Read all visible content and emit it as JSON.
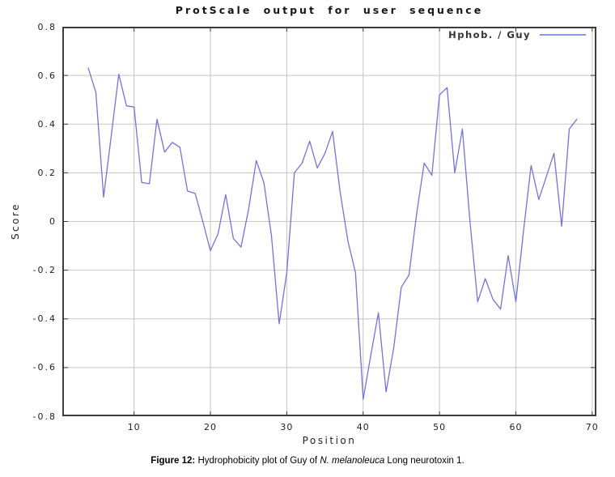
{
  "title": "ProtScale output for user sequence",
  "legend": {
    "label": "Hphob. / Guy"
  },
  "axes": {
    "x_label": "Position",
    "y_label": "Score"
  },
  "caption": {
    "prefix": "Figure 12:",
    "body": " Hydrophobicity plot of Guy of ",
    "species": "N. melanoleuca",
    "suffix": " Long neurotoxin 1."
  },
  "colors": {
    "line": "#7474d6",
    "legend_line": "#9494dd",
    "grid": "#c6c6c6",
    "frame": "#3c3c3c",
    "text": "#1d1d1d"
  },
  "chart_data": {
    "type": "line",
    "title": "ProtScale output for user sequence",
    "xlabel": "Position",
    "ylabel": "Score",
    "legend_position": "top-right",
    "grid": true,
    "xlim": [
      0.6,
      70.55
    ],
    "ylim": [
      -0.8,
      0.8
    ],
    "x_ticks": [
      10,
      20,
      30,
      40,
      50,
      60,
      70
    ],
    "y_tick_values": [
      0.8,
      0.6,
      0.4,
      0.2,
      0,
      -0.2,
      -0.4,
      -0.6,
      -0.8
    ],
    "y_tick_labels": [
      "0.8",
      "0.6",
      "0.4",
      "0.2",
      "0",
      "-0.2",
      "-0.4",
      "-0.6",
      "-0.8"
    ],
    "series": [
      {
        "name": "Hphob. / Guy",
        "positions": [
          4,
          5,
          6,
          7,
          8,
          9,
          10,
          11,
          12,
          13,
          14,
          15,
          16,
          17,
          18,
          19,
          20,
          21,
          22,
          23,
          24,
          25,
          26,
          27,
          28,
          29,
          30,
          31,
          32,
          33,
          34,
          35,
          36,
          37,
          38,
          39,
          40,
          41,
          42,
          43,
          44,
          45,
          46,
          47,
          48,
          49,
          50,
          51,
          52,
          53,
          54,
          55,
          56,
          57,
          58,
          59,
          60,
          61,
          62,
          63,
          64,
          65,
          66,
          67,
          68
        ],
        "scores": [
          0.63,
          0.53,
          0.1,
          0.35,
          0.605,
          0.475,
          0.47,
          0.16,
          0.155,
          0.42,
          0.285,
          0.325,
          0.305,
          0.125,
          0.115,
          0.0,
          -0.12,
          -0.05,
          0.11,
          -0.07,
          -0.105,
          0.05,
          0.25,
          0.16,
          -0.06,
          -0.42,
          -0.21,
          0.2,
          0.24,
          0.33,
          0.22,
          0.28,
          0.37,
          0.12,
          -0.08,
          -0.21,
          -0.73,
          -0.55,
          -0.375,
          -0.7,
          -0.52,
          -0.27,
          -0.22,
          0.03,
          0.24,
          0.19,
          0.52,
          0.55,
          0.2,
          0.38,
          0.0,
          -0.33,
          -0.235,
          -0.32,
          -0.36,
          -0.14,
          -0.33,
          -0.04,
          0.23,
          0.09,
          0.185,
          0.28,
          -0.02,
          0.38,
          0.42
        ]
      }
    ]
  }
}
